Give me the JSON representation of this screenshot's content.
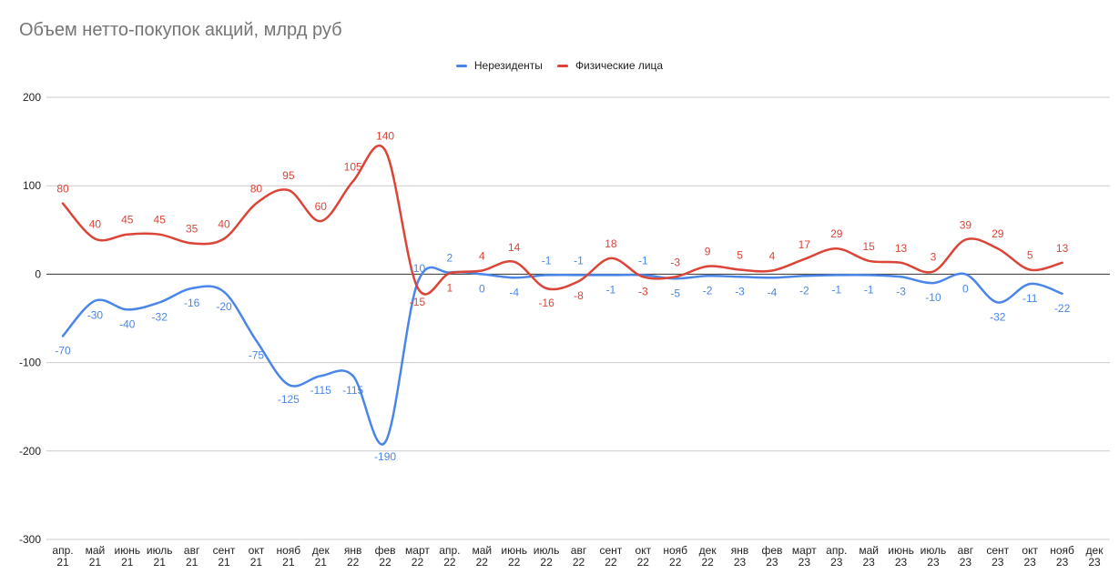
{
  "chart_data": {
    "type": "line",
    "title": "Объем нетто-покупок акций, млрд руб",
    "xlabel": "",
    "ylabel": "",
    "ylim": [
      -300,
      200
    ],
    "yticks": [
      200,
      100,
      0,
      -100,
      -200,
      -300
    ],
    "grid": true,
    "legend_position": "top-center",
    "categories": [
      [
        "апр.",
        "21"
      ],
      [
        "май",
        "21"
      ],
      [
        "июнь",
        "21"
      ],
      [
        "июль",
        "21"
      ],
      [
        "авг",
        "21"
      ],
      [
        "сент",
        "21"
      ],
      [
        "окт",
        "21"
      ],
      [
        "нояб",
        "21"
      ],
      [
        "дек",
        "21"
      ],
      [
        "янв",
        "22"
      ],
      [
        "фев",
        "22"
      ],
      [
        "март",
        "22"
      ],
      [
        "апр.",
        "22"
      ],
      [
        "май",
        "22"
      ],
      [
        "июнь",
        "22"
      ],
      [
        "июль",
        "22"
      ],
      [
        "авг",
        "22"
      ],
      [
        "сент",
        "22"
      ],
      [
        "окт",
        "22"
      ],
      [
        "нояб",
        "22"
      ],
      [
        "дек",
        "22"
      ],
      [
        "янв",
        "23"
      ],
      [
        "фев",
        "23"
      ],
      [
        "март",
        "23"
      ],
      [
        "апр.",
        "23"
      ],
      [
        "май",
        "23"
      ],
      [
        "июнь",
        "23"
      ],
      [
        "июль",
        "23"
      ],
      [
        "авг",
        "23"
      ],
      [
        "сент",
        "23"
      ],
      [
        "окт",
        "23"
      ],
      [
        "нояб",
        "23"
      ],
      [
        "дек",
        "23"
      ]
    ],
    "series": [
      {
        "name": "Нерезиденты",
        "color": "#4a86e8",
        "values": [
          -70,
          -30,
          -40,
          -32,
          -16,
          -20,
          -75,
          -125,
          -115,
          -115,
          -190,
          -10,
          2,
          0,
          -4,
          -1,
          -1,
          -1,
          -1,
          -5,
          -2,
          -3,
          -4,
          -2,
          -1,
          -1,
          -3,
          -10,
          0,
          -32,
          -11,
          -22,
          null
        ]
      },
      {
        "name": "Физические лица",
        "color": "#db4437",
        "values": [
          80,
          40,
          45,
          45,
          35,
          40,
          80,
          95,
          60,
          105,
          140,
          -15,
          1,
          4,
          14,
          -16,
          -8,
          18,
          -3,
          -3,
          9,
          5,
          4,
          17,
          29,
          15,
          13,
          3,
          39,
          29,
          5,
          13,
          null
        ]
      }
    ]
  }
}
